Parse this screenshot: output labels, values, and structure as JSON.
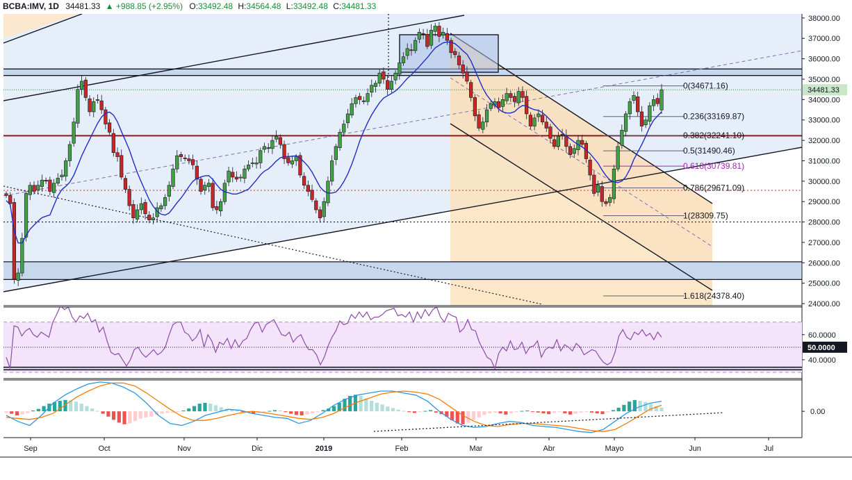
{
  "header": {
    "symbol": "BCBA:IMV, 1D",
    "last": "34481.33",
    "change": "+988.85 (+2.95%)",
    "o_label": "O:",
    "o_value": "33492.48",
    "h_label": "H:",
    "h_value": "34564.48",
    "l_label": "L:",
    "l_value": "33492.48",
    "c_label": "C:",
    "c_value": "34481.33"
  },
  "chart_data": {
    "type": "candlestick",
    "price_axis": {
      "ticks": [
        "38000.00",
        "37000.00",
        "36000.00",
        "35000.00",
        "34000.00",
        "33000.00",
        "32000.00",
        "31000.00",
        "30000.00",
        "29000.00",
        "28000.00",
        "27000.00",
        "26000.00",
        "25000.00",
        "24000.00"
      ],
      "tick_values": [
        38000,
        37000,
        36000,
        35000,
        34000,
        33000,
        32000,
        31000,
        30000,
        29000,
        28000,
        27000,
        26000,
        25000,
        24000
      ],
      "range": [
        23900,
        38200
      ],
      "last_price_label": "34481.33",
      "last_price": 34481.33
    },
    "time_axis": {
      "labels": [
        "Sep",
        "Oct",
        "Nov",
        "Dic",
        "2019",
        "Feb",
        "Mar",
        "Abr",
        "Mayo",
        "Jun",
        "Jul"
      ]
    },
    "fibonacci": [
      {
        "label": "0(34671.16)",
        "value": 34671.16
      },
      {
        "label": "0.236(33169.87)",
        "value": 33169.87
      },
      {
        "label": "0.382(32241.10)",
        "value": 32241.1
      },
      {
        "label": "0.5(31490.46)",
        "value": 31490.46
      },
      {
        "label": "0.618(30739.81)",
        "value": 30739.81
      },
      {
        "label": "0.786(29671.09)",
        "value": 29671.09
      },
      {
        "label": "1(28309.75)",
        "value": 28309.75
      },
      {
        "label": "1.618(24378.40)",
        "value": 24378.4
      }
    ],
    "rsi": {
      "ticks": [
        "60.0000",
        "40.0000"
      ],
      "tick_values": [
        60,
        40
      ],
      "marked_level": "50.0000",
      "marked_value": 50,
      "range": [
        25,
        82
      ],
      "values": [
        42,
        33,
        67,
        66,
        59,
        63,
        65,
        60,
        58,
        62,
        60,
        58,
        70,
        76,
        83,
        80,
        82,
        74,
        70,
        75,
        73,
        77,
        70,
        72,
        62,
        66,
        55,
        46,
        44,
        45,
        40,
        35,
        40,
        48,
        50,
        45,
        42,
        45,
        48,
        44,
        46,
        50,
        60,
        68,
        70,
        70,
        62,
        60,
        55,
        58,
        64,
        50,
        60,
        55,
        46,
        54,
        52,
        57,
        49,
        56,
        50,
        55,
        57,
        64,
        69,
        70,
        62,
        68,
        70,
        72,
        66,
        60,
        59,
        62,
        54,
        58,
        60,
        53,
        48,
        48,
        44,
        36,
        42,
        51,
        58,
        63,
        71,
        68,
        69,
        76,
        73,
        78,
        74,
        78,
        72,
        74,
        74,
        76,
        79,
        80,
        81,
        75,
        76,
        74,
        78,
        70,
        78,
        73,
        80,
        75,
        80,
        82,
        74,
        70,
        77,
        75,
        74,
        62,
        65,
        72,
        64,
        63,
        54,
        48,
        42,
        40,
        33,
        45,
        50,
        47,
        55,
        48,
        49,
        54,
        45,
        50,
        51,
        55,
        42,
        48,
        50,
        49,
        56,
        47,
        52,
        50,
        47,
        53,
        50,
        44,
        46,
        48,
        47,
        42,
        38,
        36,
        38,
        46,
        59,
        64,
        58,
        56,
        62,
        60,
        64,
        59,
        61,
        56,
        62,
        58
      ]
    },
    "macd": {
      "zero_label": "0.00",
      "range": [
        -1300,
        1550
      ]
    }
  }
}
